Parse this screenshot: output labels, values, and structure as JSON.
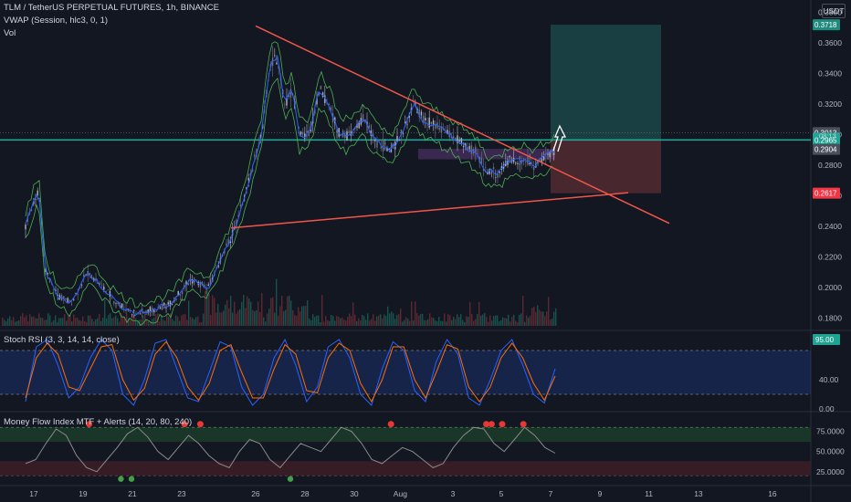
{
  "header": {
    "symbol": "TLM / TetherUS PERPETUAL FUTURES, 1h, BINANCE",
    "vwap": "VWAP (Session, hlc3, 0, 1)",
    "vol": "Vol",
    "stoch_label": "Stoch RSI (3, 3, 14, 14, close)",
    "mfi_label": "Money Flow Index MTF + Alerts (14, 20, 80, 240)",
    "currency": "USDT"
  },
  "colors": {
    "background": "#131722",
    "trendline": "#f2564a",
    "target_zone": "#1c4748",
    "stop_zone": "#4f2a30",
    "entry_line": "#1fa393",
    "vwap_band": "#4caf50",
    "rsi_k": "#2962ff",
    "rsi_d": "#ff6d00",
    "mfi_line": "#8a8a8a",
    "overbought_zone": "#1c3a2a",
    "oversold_zone": "#3b1e26"
  },
  "chart_data": [
    {
      "type": "candlestick",
      "title": "TLM / TetherUS PERPETUAL FUTURES, 1h, BINANCE",
      "x_ticks": [
        "17",
        "19",
        "21",
        "23",
        "26",
        "28",
        "30",
        "Aug",
        "3",
        "5",
        "7",
        "9",
        "11",
        "13",
        "16"
      ],
      "y_ticks": [
        "0.3800",
        "0.3600",
        "0.3400",
        "0.3200",
        "0.3000",
        "0.2800",
        "0.2600",
        "0.2400",
        "0.2200",
        "0.2000",
        "0.1800"
      ],
      "ylim": [
        0.175,
        0.385
      ],
      "price_labels": [
        {
          "value": 0.3718,
          "text": "0.3718",
          "color": "#1f8a7e"
        },
        {
          "value": 0.3013,
          "text": "0.3013",
          "color": "#4a4f5c"
        },
        {
          "value": 0.2977,
          "text": "0.2977",
          "color": "#26a69a"
        },
        {
          "value": 0.2965,
          "text": "0.2965",
          "color": "#1fa393"
        },
        {
          "value": 0.2904,
          "text": "0.2904",
          "color": "#4a4f5c"
        },
        {
          "value": 0.2617,
          "text": "0.2617",
          "color": "#f23645"
        }
      ],
      "countdown_label": "08:13",
      "price_path": [
        [
          0,
          0.24
        ],
        [
          14,
          0.265
        ],
        [
          22,
          0.21
        ],
        [
          35,
          0.195
        ],
        [
          50,
          0.19
        ],
        [
          68,
          0.21
        ],
        [
          85,
          0.2
        ],
        [
          100,
          0.19
        ],
        [
          120,
          0.183
        ],
        [
          140,
          0.185
        ],
        [
          160,
          0.19
        ],
        [
          180,
          0.205
        ],
        [
          200,
          0.2
        ],
        [
          215,
          0.22
        ],
        [
          230,
          0.24
        ],
        [
          245,
          0.27
        ],
        [
          258,
          0.3
        ],
        [
          268,
          0.345
        ],
        [
          276,
          0.35
        ],
        [
          284,
          0.32
        ],
        [
          292,
          0.33
        ],
        [
          300,
          0.3
        ],
        [
          310,
          0.3
        ],
        [
          322,
          0.33
        ],
        [
          332,
          0.32
        ],
        [
          344,
          0.3
        ],
        [
          356,
          0.3
        ],
        [
          370,
          0.31
        ],
        [
          385,
          0.295
        ],
        [
          400,
          0.29
        ],
        [
          412,
          0.3
        ],
        [
          425,
          0.32
        ],
        [
          435,
          0.31
        ],
        [
          450,
          0.305
        ],
        [
          465,
          0.3
        ],
        [
          480,
          0.293
        ],
        [
          495,
          0.287
        ],
        [
          505,
          0.276
        ],
        [
          518,
          0.275
        ],
        [
          530,
          0.283
        ],
        [
          545,
          0.283
        ],
        [
          558,
          0.28
        ],
        [
          570,
          0.286
        ],
        [
          582,
          0.29
        ],
        [
          590,
          0.305
        ],
        [
          600,
          0.303
        ],
        [
          608,
          0.303
        ]
      ],
      "trendlines": [
        {
          "from": [
            22,
            0.371
          ],
          "to": [
            242,
            0.242
          ],
          "label": ""
        },
        {
          "from": [
            -5,
            0.239
          ],
          "to": [
            197,
            0.262
          ],
          "label": ""
        }
      ],
      "target_zone": {
        "top": 0.3718,
        "bottom": 0.2965
      },
      "stop_zone": {
        "top": 0.2965,
        "bottom": 0.2617
      }
    },
    {
      "type": "line",
      "title": "Stoch RSI (3, 3, 14, 14, close)",
      "y_ticks": [
        "95.00",
        "40.00",
        "0.00"
      ],
      "ylim": [
        0,
        100
      ],
      "bands": [
        20,
        80
      ],
      "series": [
        {
          "name": "",
          "values": [
            10,
            85,
            95,
            60,
            15,
            30,
            70,
            95,
            80,
            20,
            5,
            40,
            90,
            95,
            55,
            15,
            10,
            50,
            92,
            85,
            30,
            5,
            20,
            70,
            95,
            60,
            10,
            30,
            85,
            95,
            70,
            20,
            5,
            55,
            92,
            80,
            25,
            10,
            65,
            95,
            75,
            15,
            5,
            40,
            80,
            95,
            60,
            20,
            8,
            55
          ]
        },
        {
          "name": "",
          "values": [
            15,
            70,
            90,
            75,
            30,
            25,
            55,
            85,
            88,
            40,
            12,
            28,
            75,
            92,
            70,
            30,
            12,
            35,
            80,
            88,
            50,
            15,
            15,
            55,
            88,
            75,
            25,
            22,
            70,
            90,
            80,
            35,
            10,
            40,
            85,
            85,
            40,
            15,
            50,
            88,
            82,
            30,
            10,
            30,
            70,
            90,
            70,
            35,
            12,
            45
          ]
        }
      ]
    },
    {
      "type": "line",
      "title": "Money Flow Index MTF + Alerts (14, 20, 80, 240)",
      "y_ticks": [
        "75.0000",
        "50.0000",
        "25.0000"
      ],
      "ylim": [
        10,
        95
      ],
      "bands": [
        20,
        80
      ],
      "series": [
        {
          "name": "",
          "values": [
            35,
            40,
            60,
            78,
            70,
            45,
            30,
            25,
            40,
            55,
            72,
            80,
            68,
            50,
            40,
            55,
            70,
            60,
            45,
            35,
            30,
            50,
            65,
            60,
            40,
            30,
            45,
            60,
            55,
            50,
            65,
            80,
            75,
            60,
            40,
            35,
            45,
            55,
            50,
            40,
            30,
            35,
            55,
            70,
            80,
            78,
            60,
            50,
            65,
            80,
            70,
            55,
            48
          ]
        }
      ],
      "alerts_red": [
        0.12,
        0.3,
        0.33,
        0.69,
        0.87,
        0.88,
        0.9,
        0.94
      ],
      "alerts_green": [
        0.18,
        0.2,
        0.5
      ]
    }
  ]
}
